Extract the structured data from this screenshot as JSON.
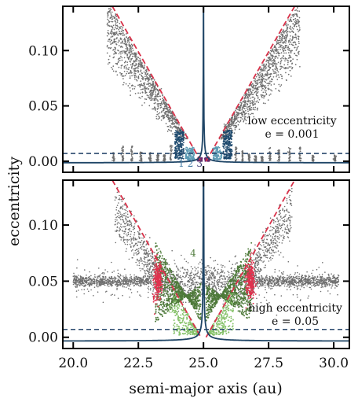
{
  "chart_data": [
    {
      "type": "scatter",
      "panel": "top",
      "xlim": [
        19.6,
        30.6
      ],
      "ylim": [
        -0.01,
        0.14
      ],
      "yticks": [
        0.0,
        0.05,
        0.1
      ],
      "ytick_labels": [
        "0.00",
        "0.05",
        "0.10"
      ],
      "xticks": [
        20.0,
        22.5,
        25.0,
        27.5,
        30.0
      ],
      "annotation": [
        "low eccentricity",
        "e = 0.001"
      ],
      "dashed_threshold": 0.007,
      "planet_a": 25.0,
      "resonance_boundary_lines": [
        {
          "x": [
            21.5,
            24.9
          ],
          "y": [
            0.14,
            0.0
          ]
        },
        {
          "x": [
            25.1,
            28.5
          ],
          "y": [
            0.0,
            0.14
          ]
        }
      ],
      "group_labels": [
        {
          "text": "1",
          "x": 24.15,
          "y": -0.005,
          "color": "#4a7fa6"
        },
        {
          "text": "2",
          "x": 24.5,
          "y": -0.005,
          "color": "#4a7fa6"
        },
        {
          "text": "3",
          "x": 24.85,
          "y": -0.005,
          "color": "#3d3a73"
        }
      ],
      "series": [
        {
          "color": "#6e6e6e",
          "points": [
            [
              21.5,
              0.0045
            ],
            [
              22.0,
              0.006
            ],
            [
              22.5,
              0.007
            ],
            [
              23.0,
              0.007
            ],
            [
              23.4,
              0.012
            ],
            [
              22.3,
              0.069
            ],
            [
              22.8,
              0.055
            ],
            [
              23.5,
              0.033
            ],
            [
              27.0,
              0.03
            ],
            [
              27.5,
              0.045
            ],
            [
              28.0,
              0.06
            ],
            [
              28.4,
              0.086
            ]
          ]
        },
        {
          "color": "#1e4a6e",
          "points": [
            [
              24.1,
              0.012
            ],
            [
              24.2,
              0.019
            ],
            [
              24.3,
              0.01
            ],
            [
              25.85,
              0.01
            ],
            [
              25.9,
              0.02
            ]
          ]
        },
        {
          "color": "#5b9ab3",
          "points": [
            [
              24.4,
              0.008
            ],
            [
              24.6,
              0.006
            ],
            [
              25.5,
              0.007
            ],
            [
              25.7,
              0.012
            ]
          ]
        },
        {
          "color": "#6a2a6e",
          "points": [
            [
              24.85,
              0.0015
            ],
            [
              25.15,
              0.0015
            ]
          ]
        }
      ]
    },
    {
      "type": "scatter",
      "panel": "bottom",
      "xlim": [
        19.6,
        30.6
      ],
      "ylim": [
        -0.01,
        0.14
      ],
      "yticks": [
        0.0,
        0.05,
        0.1
      ],
      "ytick_labels": [
        "0.00",
        "0.05",
        "0.10"
      ],
      "xticks": [
        20.0,
        22.5,
        25.0,
        27.5,
        30.0
      ],
      "xtick_labels": [
        "20.0",
        "22.5",
        "25.0",
        "27.5",
        "30.0"
      ],
      "xlabel": "semi-major axis (au)",
      "annotation": [
        "high eccentricity",
        "e = 0.05"
      ],
      "dashed_threshold": 0.007,
      "planet_a": 25.0,
      "resonance_boundary_lines": [
        {
          "x": [
            21.5,
            24.9
          ],
          "y": [
            0.14,
            0.0
          ]
        },
        {
          "x": [
            25.1,
            28.5
          ],
          "y": [
            0.0,
            0.14
          ]
        }
      ],
      "group_labels": [
        {
          "text": "4",
          "x": 24.6,
          "y": 0.072,
          "color": "#4e7a3a"
        },
        {
          "text": "5",
          "x": 23.75,
          "y": 0.022,
          "color": "#86c26a"
        },
        {
          "text": "6",
          "x": 23.15,
          "y": 0.032,
          "color": "#e0334f"
        }
      ],
      "series": [
        {
          "color": "#6e6e6e",
          "points": [
            [
              20.5,
              0.05
            ],
            [
              21.5,
              0.05
            ],
            [
              22.5,
              0.05
            ],
            [
              27.5,
              0.05
            ],
            [
              28.5,
              0.05
            ],
            [
              29.5,
              0.05
            ],
            [
              28.0,
              0.105
            ],
            [
              27.7,
              0.09
            ]
          ]
        },
        {
          "color": "#4e7a3a",
          "points": [
            [
              23.2,
              0.08
            ],
            [
              23.5,
              0.07
            ],
            [
              24.0,
              0.06
            ],
            [
              24.5,
              0.045
            ],
            [
              25.5,
              0.045
            ],
            [
              26.0,
              0.055
            ],
            [
              26.5,
              0.065
            ],
            [
              26.9,
              0.08
            ]
          ]
        },
        {
          "color": "#86c26a",
          "points": [
            [
              24.1,
              0.03
            ],
            [
              24.4,
              0.02
            ],
            [
              25.6,
              0.02
            ],
            [
              25.9,
              0.03
            ]
          ]
        },
        {
          "color": "#e0334f",
          "points": [
            [
              23.2,
              0.05
            ],
            [
              26.8,
              0.05
            ]
          ]
        }
      ]
    }
  ],
  "ylabel": "eccentricity",
  "colors": {
    "scatter": "#6e6e6e",
    "boundary_line": "#d9324a",
    "threshold_line": "#2b4a6e",
    "curve": "#1f4566"
  }
}
